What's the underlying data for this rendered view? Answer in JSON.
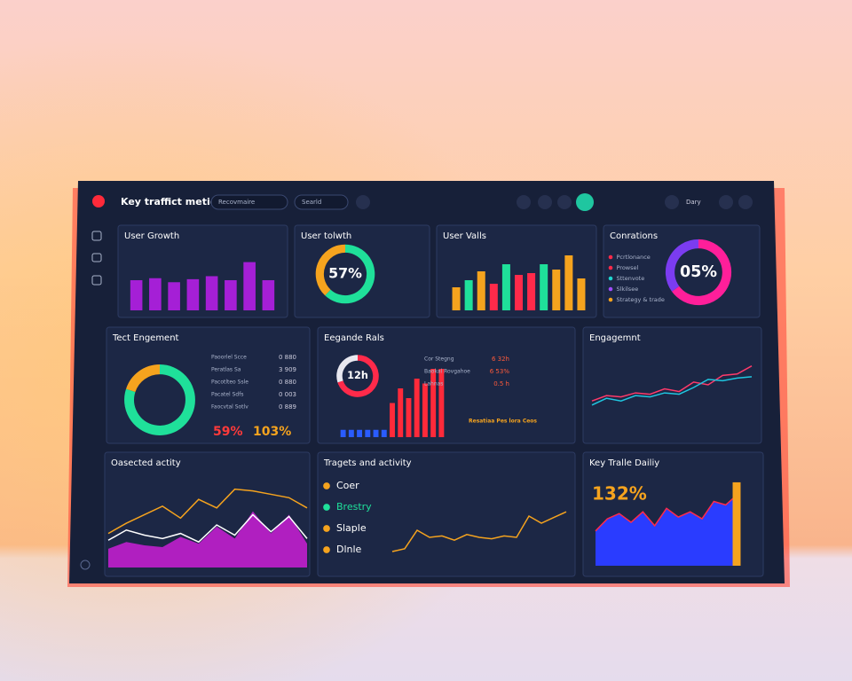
{
  "header": {
    "title": "Key traffict metics",
    "search": "Recovmaire",
    "filter": "Searld",
    "range": "Dary"
  },
  "panels": [
    {
      "title": "User Growth",
      "charts": [
        {
          "type": "bar",
          "values": [
            30,
            32,
            28,
            31,
            34,
            30,
            48,
            30
          ],
          "ylim": [
            0,
            60
          ],
          "color": "#a51fd6"
        }
      ]
    },
    {
      "title": "User tolwth",
      "charts": [
        {
          "type": "donut",
          "segments": [
            62,
            38
          ],
          "colors": [
            "#1fe09a",
            "#f5a31e"
          ],
          "label": "57%"
        }
      ]
    },
    {
      "title": "User Valls",
      "charts": [
        {
          "type": "bar",
          "values": [
            26,
            34,
            44,
            30,
            52,
            40,
            42,
            52,
            46,
            62,
            36
          ],
          "ylim": [
            0,
            70
          ],
          "colors": [
            "#f5a31e",
            "#1fe09a",
            "#f5a31e",
            "#ff2a4a",
            "#1fe09a",
            "#ff2a4a",
            "#ff2a4a",
            "#1fe09a",
            "#f5a31e",
            "#f5a31e",
            "#f5a31e"
          ]
        }
      ]
    },
    {
      "title": "Conrations",
      "items": [
        {
          "text": "Pcrtlonance",
          "color": "#ff2a4a"
        },
        {
          "text": "Prowsel",
          "color": "#ff2a4a"
        },
        {
          "text": "Sttenvote",
          "color": "#1fd6d0"
        },
        {
          "text": "Slkilsee",
          "color": "#a04cff"
        },
        {
          "text": "Strategy & trade",
          "color": "#f5a31e"
        }
      ],
      "charts": [
        {
          "type": "donut",
          "segments": [
            65,
            35
          ],
          "colors": [
            "#ff1f9a",
            "#7b3cf0"
          ],
          "label": "05%"
        }
      ]
    },
    {
      "title": "Tect Engement",
      "rows": [
        [
          "Paoorlel Scce",
          "0 880"
        ],
        [
          "Peratlas Sa",
          "3 909"
        ],
        [
          "Pacotlteo Ssle",
          "0 880"
        ],
        [
          "Pacatel Sdfs",
          "0 003"
        ],
        [
          "Faocvtal Sotlv",
          "0 889"
        ]
      ],
      "notes": [
        {
          "text": "59%",
          "color": "#ff3a3a"
        },
        {
          "text": "103%",
          "color": "#f5a31e"
        }
      ],
      "charts": [
        {
          "type": "donut",
          "segments": [
            80,
            20
          ],
          "colors": [
            "#1fe09a",
            "#f5a31e"
          ]
        }
      ]
    },
    {
      "title": "Eegande Rals",
      "rows": [
        [
          "Cor Stegng",
          "6 32h"
        ],
        [
          "Baokal Rovgahoe",
          "6 53%"
        ],
        [
          "Lahnas",
          "0.5 h"
        ]
      ],
      "notes": [
        {
          "text": "Resatiaa Pes lora Ceos",
          "color": "#f5a31e"
        }
      ],
      "charts": [
        {
          "type": "donut",
          "segments": [
            70,
            30
          ],
          "colors": [
            "#ff2a4a",
            "#e8e8f0"
          ],
          "label": "12h"
        },
        {
          "type": "bar",
          "values": [
            3,
            3,
            3,
            3,
            3,
            3,
            14,
            20,
            16,
            24,
            22,
            28,
            28
          ],
          "ylim": [
            0,
            32
          ],
          "colors": [
            "#2a5cff",
            "#2a5cff",
            "#2a5cff",
            "#2a5cff",
            "#2a5cff",
            "#2a5cff",
            "#ff2a3a",
            "#ff2a3a",
            "#ff2a3a",
            "#ff2a3a",
            "#ff2a3a",
            "#ff2a3a",
            "#ff2a3a"
          ]
        }
      ]
    },
    {
      "title": "Engagemnt",
      "charts": [
        {
          "type": "line",
          "ylim": [
            0,
            100
          ],
          "series": [
            {
              "color": "#ff3a6a",
              "values": [
                30,
                38,
                36,
                42,
                40,
                48,
                44,
                58,
                54,
                68,
                70,
                82
              ]
            },
            {
              "color": "#1fc6e0",
              "values": [
                24,
                34,
                30,
                38,
                36,
                42,
                40,
                50,
                62,
                60,
                64,
                66
              ]
            }
          ]
        }
      ]
    },
    {
      "title": "Oasected actity",
      "charts": [
        {
          "type": "line",
          "ylim": [
            0,
            100
          ],
          "series": [
            {
              "color": "#b01fc0",
              "fill": true,
              "values": [
                22,
                30,
                26,
                24,
                36,
                28,
                48,
                34,
                66,
                40,
                62,
                28
              ]
            },
            {
              "color": "#ffffff",
              "values": [
                32,
                44,
                38,
                34,
                40,
                30,
                50,
                38,
                62,
                42,
                60,
                34
              ]
            },
            {
              "color": "#f5a31e",
              "values": [
                40,
                52,
                62,
                72,
                58,
                80,
                70,
                92,
                90,
                86,
                82,
                70
              ]
            }
          ]
        }
      ]
    },
    {
      "title": "Tragets and activity",
      "items": [
        {
          "text": "Coer",
          "color": "#f5a31e"
        },
        {
          "text": "Brestry",
          "color": "#1fe09a"
        },
        {
          "text": "Slaple",
          "color": "#f5a31e"
        },
        {
          "text": "Dlnle",
          "color": "#f5a31e"
        }
      ],
      "charts": [
        {
          "type": "line",
          "ylim": [
            0,
            100
          ],
          "series": [
            {
              "color": "#f5a31e",
              "values": [
                10,
                14,
                40,
                30,
                32,
                26,
                34,
                30,
                28,
                32,
                30,
                60,
                50,
                58,
                66
              ]
            }
          ]
        }
      ]
    },
    {
      "title": "Key Tralle Dailiy",
      "notes": [
        {
          "text": "132%",
          "color": "#f5a31e"
        }
      ],
      "charts": [
        {
          "type": "line",
          "ylim": [
            0,
            100
          ],
          "series": [
            {
              "color": "#2a3cff",
              "fill": true,
              "values": [
                40,
                54,
                60,
                50,
                62,
                46,
                66,
                56,
                62,
                54,
                74,
                70,
                82
              ]
            },
            {
              "color": "#ff2a4a",
              "values": [
                40,
                54,
                60,
                50,
                62,
                46,
                66,
                56,
                62,
                54,
                74,
                70,
                82
              ]
            }
          ]
        },
        {
          "type": "bar",
          "values": [
            96
          ],
          "ylim": [
            0,
            100
          ],
          "color": "#f5a31e"
        }
      ]
    }
  ]
}
